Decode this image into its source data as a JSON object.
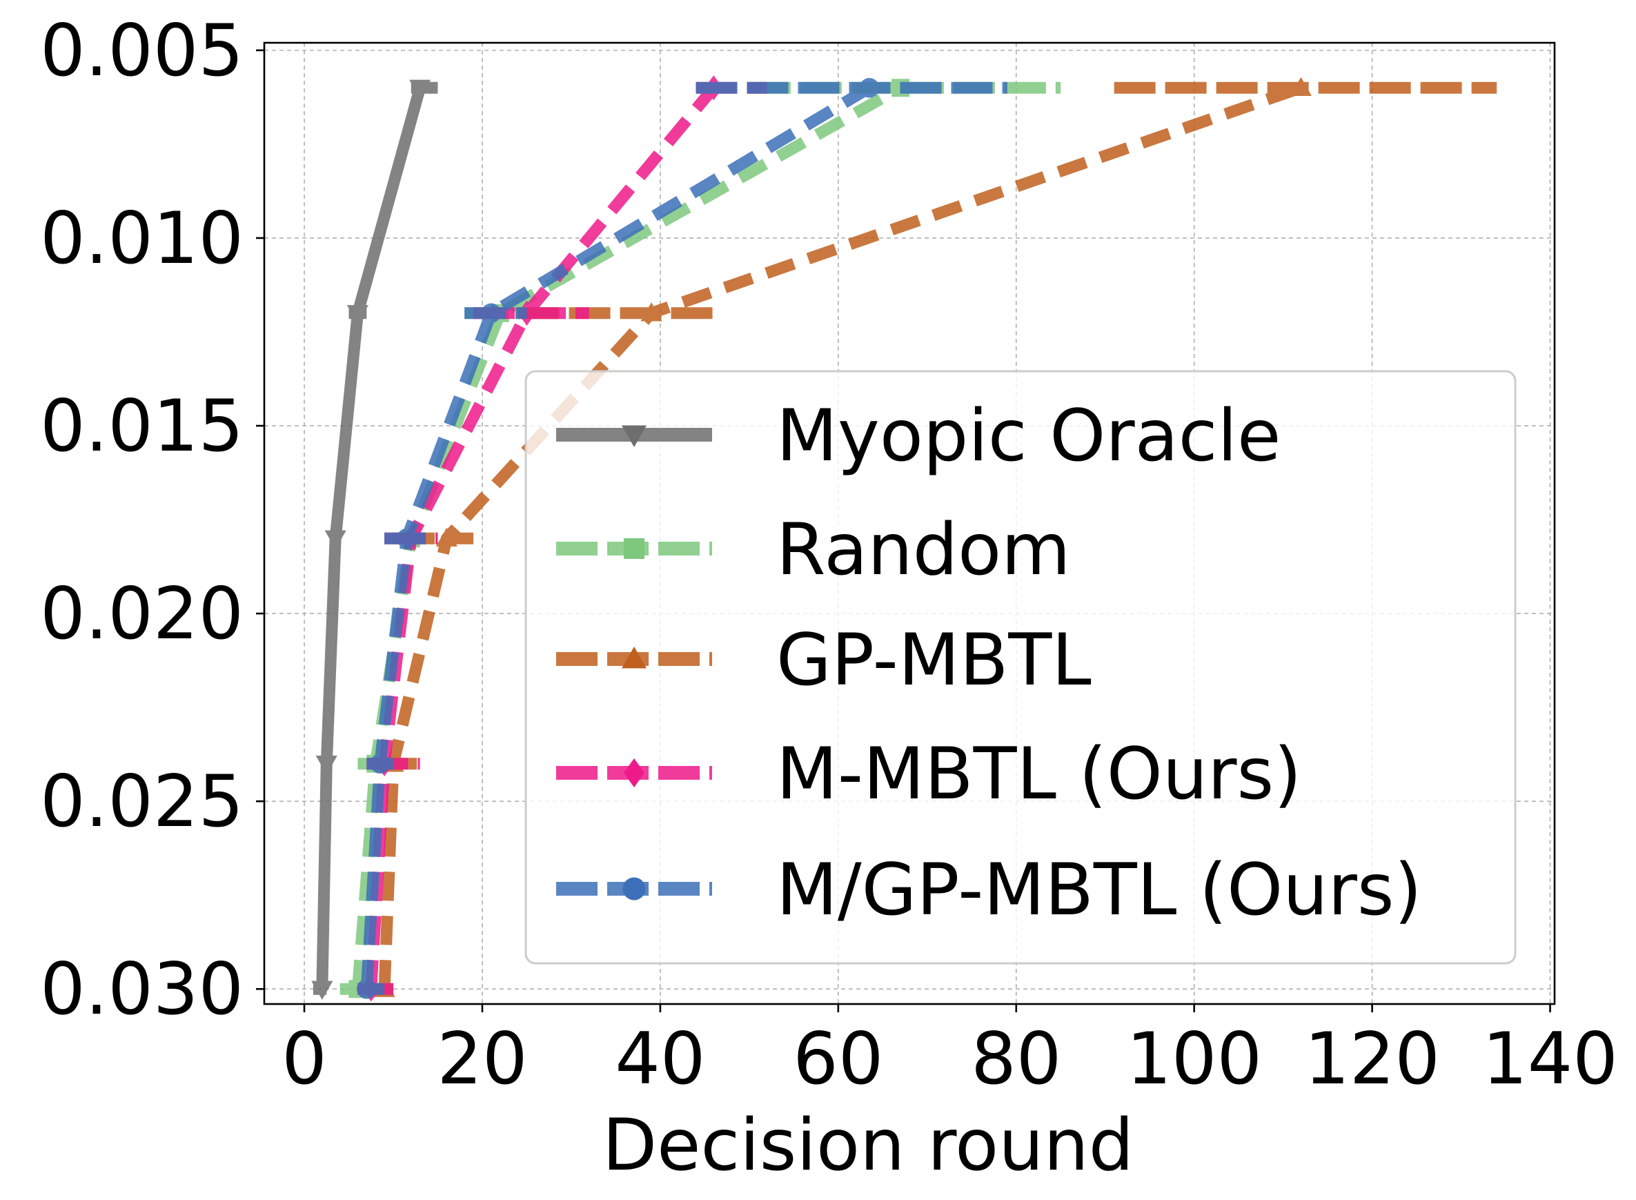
{
  "chart_data": {
    "type": "line",
    "title": "",
    "xlabel": "Decision round",
    "ylabel": "",
    "xlim": [
      -4.5,
      140.5
    ],
    "ylim": [
      0.0304,
      0.0048
    ],
    "y_inverted": true,
    "grid": true,
    "legend_position": "center-right",
    "x_ticks": [
      0,
      20,
      40,
      60,
      80,
      100,
      120,
      140
    ],
    "x_tick_labels": [
      "0",
      "20",
      "40",
      "60",
      "80",
      "100",
      "120",
      "140"
    ],
    "y_ticks": [
      0.005,
      0.01,
      0.015,
      0.02,
      0.025,
      0.03
    ],
    "y_tick_labels": [
      "0.005",
      "0.010",
      "0.015",
      "0.020",
      "0.025",
      "0.030"
    ],
    "series": [
      {
        "name": "Myopic Oracle",
        "color": "#6e6e6e",
        "linestyle": "solid",
        "marker": "triangle-down",
        "points": [
          [
            2,
            0.03
          ],
          [
            2.5,
            0.024
          ],
          [
            3.5,
            0.018
          ],
          [
            6,
            0.012
          ],
          [
            13,
            0.006
          ]
        ],
        "error_bars": [
          [
            1,
            2.5,
            0.03
          ],
          [
            2,
            3,
            0.024
          ],
          [
            3,
            4,
            0.018
          ],
          [
            5,
            7,
            0.012
          ],
          [
            12,
            15,
            0.006
          ]
        ]
      },
      {
        "name": "Random",
        "color": "#7ec87e",
        "linestyle": "dashed",
        "marker": "square",
        "points": [
          [
            6,
            0.03
          ],
          [
            8,
            0.024
          ],
          [
            12,
            0.018
          ],
          [
            22,
            0.012
          ],
          [
            67,
            0.006
          ]
        ],
        "error_bars": [
          [
            4,
            8,
            0.03
          ],
          [
            6,
            10,
            0.024
          ],
          [
            9,
            15,
            0.018
          ],
          [
            18,
            29,
            0.012
          ],
          [
            50,
            85,
            0.006
          ]
        ]
      },
      {
        "name": "GP-MBTL",
        "color": "#c0601e",
        "linestyle": "dashed",
        "marker": "triangle-up",
        "points": [
          [
            9,
            0.03
          ],
          [
            10,
            0.024
          ],
          [
            16,
            0.018
          ],
          [
            39,
            0.012
          ],
          [
            112,
            0.006
          ]
        ],
        "error_bars": [
          [
            7,
            10,
            0.03
          ],
          [
            8,
            13,
            0.024
          ],
          [
            10,
            19,
            0.018
          ],
          [
            24,
            46,
            0.012
          ],
          [
            91,
            134,
            0.006
          ]
        ]
      },
      {
        "name": "M-MBTL (Ours)",
        "color": "#ee1a8a",
        "linestyle": "dashed",
        "marker": "diamond",
        "points": [
          [
            7.5,
            0.03
          ],
          [
            9,
            0.024
          ],
          [
            12,
            0.018
          ],
          [
            25,
            0.012
          ],
          [
            46,
            0.006
          ]
        ],
        "error_bars": [
          [
            6,
            10,
            0.03
          ],
          [
            7,
            13,
            0.024
          ],
          [
            9,
            15,
            0.018
          ],
          [
            19,
            32,
            0.012
          ],
          [
            44,
            52,
            0.006
          ]
        ]
      },
      {
        "name": "M/GP-MBTL (Ours)",
        "color": "#3d70b8",
        "linestyle": "dashed",
        "marker": "circle",
        "points": [
          [
            7,
            0.03
          ],
          [
            8.5,
            0.024
          ],
          [
            11.5,
            0.018
          ],
          [
            21,
            0.012
          ],
          [
            63.5,
            0.006
          ]
        ],
        "error_bars": [
          [
            6,
            9,
            0.03
          ],
          [
            7,
            10,
            0.024
          ],
          [
            9,
            14,
            0.018
          ],
          [
            18,
            25,
            0.012
          ],
          [
            44,
            79,
            0.006
          ]
        ]
      }
    ]
  }
}
